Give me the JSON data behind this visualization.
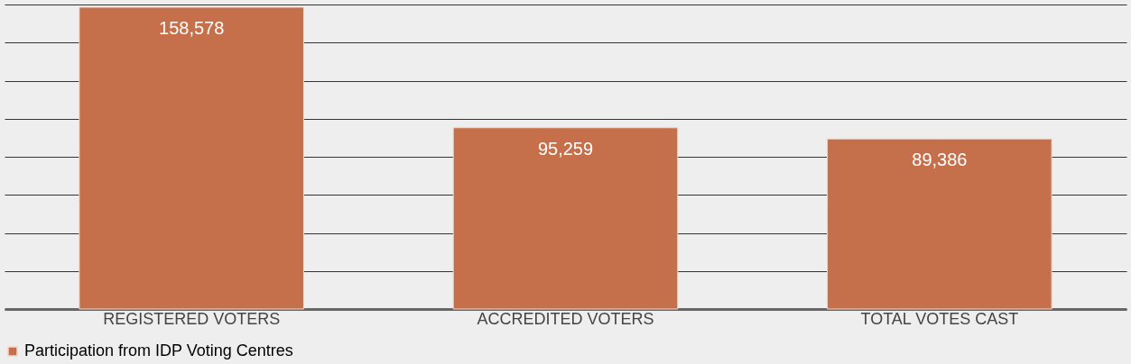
{
  "chart_data": {
    "type": "bar",
    "categories": [
      "REGISTERED VOTERS",
      "ACCREDITED VOTERS",
      "TOTAL VOTES CAST"
    ],
    "series": [
      {
        "name": "Participation from IDP Voting Centres",
        "color": "#c5704a",
        "values": [
          158578,
          95259,
          89386
        ],
        "value_labels": [
          "158,578",
          "95,259",
          "89,386"
        ]
      }
    ],
    "tick_labels": "x",
    "grid": "y",
    "legend": "bottom"
  }
}
